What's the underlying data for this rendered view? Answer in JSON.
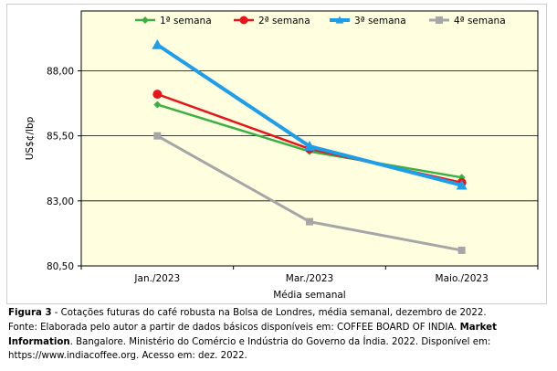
{
  "chart_data": {
    "type": "line",
    "categories": [
      "Jan./2023",
      "Mar./2023",
      "Maio./2023"
    ],
    "series": [
      {
        "name": "1ª semana",
        "values": [
          86.7,
          84.9,
          83.9
        ],
        "color": "#3cb043",
        "marker": "diamond"
      },
      {
        "name": "2ª semana",
        "values": [
          87.1,
          85.0,
          83.7
        ],
        "color": "#e8141c",
        "marker": "circle"
      },
      {
        "name": "3ª semana",
        "values": [
          89.0,
          85.1,
          83.6
        ],
        "color": "#1e9ee8",
        "marker": "triangle"
      },
      {
        "name": "4ª semana",
        "values": [
          85.5,
          82.2,
          81.1
        ],
        "color": "#a6a6a6",
        "marker": "square"
      }
    ],
    "xlabel": "Média semanal",
    "ylabel": "US$¢/lbp",
    "ylim": [
      80.5,
      90.3
    ],
    "yticks": [
      80.5,
      83.0,
      85.5,
      88.0
    ],
    "ytick_labels": [
      "80,50",
      "83,00",
      "85,50",
      "88,00"
    ],
    "legend_position": "top",
    "plot_background": "#ffffe0",
    "grid": "horizontal"
  },
  "caption": {
    "figure_label": "Figura 3",
    "figure_text": " - Cotações futuras do café robusta na Bolsa de Londres, média semanal, dezembro de 2022.",
    "source_prefix": "Fonte: Elaborada pelo autor a partir de dados básicos disponíveis em: COFFEE BOARD OF INDIA. ",
    "source_bold": "Market Information",
    "source_suffix": ". Bangalore. Ministério do Comércio e Indústria do Governo da Índia. 2022. Disponível em: https://www.indiacoffee.org. Acesso em: dez. 2022."
  }
}
